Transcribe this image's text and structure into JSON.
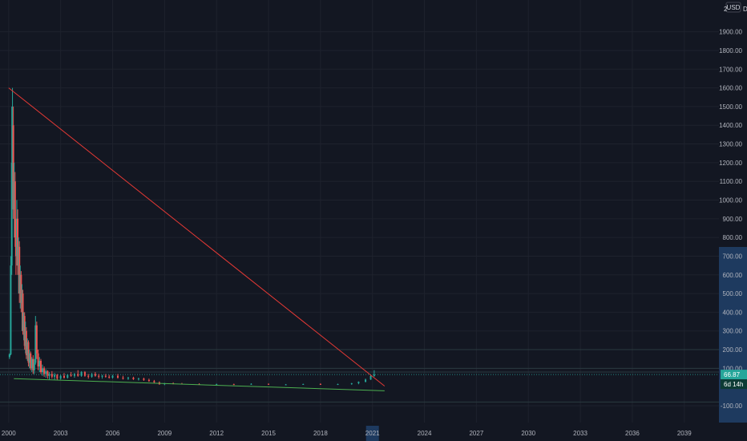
{
  "chart_data": {
    "type": "candlestick",
    "x_axis": {
      "tick_labels": [
        "2000",
        "2003",
        "2006",
        "2009",
        "2012",
        "2015",
        "2018",
        "2021",
        "2024",
        "2027",
        "2030",
        "2033",
        "2036",
        "2039"
      ],
      "highlighted": "2021",
      "range": [
        1999.5,
        2041
      ]
    },
    "y_axis": {
      "tick_labels": [
        "-100.00",
        "100.00",
        "200.00",
        "300.00",
        "400.00",
        "500.00",
        "600.00",
        "700.00",
        "800.00",
        "900.00",
        "1000.00",
        "1100.00",
        "1200.00",
        "1300.00",
        "1400.00",
        "1500.00",
        "1600.00",
        "1700.00",
        "1800.00",
        "1900.00"
      ],
      "range": [
        -190,
        2070
      ],
      "currency": "USD",
      "top_clipped_label": "2",
      "scale_mode": "D"
    },
    "series": [
      {
        "type": "candles",
        "points": [
          [
            2000.05,
            160,
            180,
            150,
            175
          ],
          [
            2000.12,
            175,
            700,
            170,
            650
          ],
          [
            2000.18,
            650,
            1500,
            600,
            1200
          ],
          [
            2000.22,
            1200,
            1600,
            1000,
            1400
          ],
          [
            2000.27,
            1400,
            1500,
            900,
            950
          ],
          [
            2000.32,
            950,
            1200,
            800,
            1100
          ],
          [
            2000.37,
            1100,
            1150,
            750,
            800
          ],
          [
            2000.42,
            800,
            900,
            600,
            700
          ],
          [
            2000.47,
            700,
            1000,
            650,
            900
          ],
          [
            2000.52,
            900,
            950,
            600,
            650
          ],
          [
            2000.57,
            650,
            800,
            500,
            750
          ],
          [
            2000.62,
            750,
            780,
            450,
            500
          ],
          [
            2000.67,
            500,
            650,
            420,
            600
          ],
          [
            2000.72,
            600,
            620,
            400,
            450
          ],
          [
            2000.77,
            450,
            550,
            300,
            500
          ],
          [
            2000.82,
            500,
            520,
            280,
            300
          ],
          [
            2000.87,
            300,
            400,
            250,
            380
          ],
          [
            2000.92,
            380,
            400,
            200,
            220
          ],
          [
            2000.97,
            220,
            350,
            180,
            300
          ],
          [
            2001.02,
            300,
            320,
            150,
            170
          ],
          [
            2001.08,
            170,
            260,
            140,
            240
          ],
          [
            2001.14,
            240,
            250,
            110,
            130
          ],
          [
            2001.2,
            130,
            200,
            100,
            180
          ],
          [
            2001.27,
            180,
            190,
            90,
            100
          ],
          [
            2001.34,
            100,
            160,
            80,
            150
          ],
          [
            2001.41,
            150,
            170,
            70,
            90
          ],
          [
            2001.48,
            90,
            150,
            70,
            130
          ],
          [
            2001.55,
            130,
            380,
            120,
            330
          ],
          [
            2001.62,
            330,
            350,
            150,
            180
          ],
          [
            2001.7,
            180,
            200,
            90,
            110
          ],
          [
            2001.78,
            110,
            160,
            80,
            140
          ],
          [
            2001.86,
            140,
            150,
            70,
            80
          ],
          [
            2001.95,
            80,
            120,
            60,
            100
          ],
          [
            2002.05,
            100,
            110,
            55,
            70
          ],
          [
            2002.15,
            70,
            95,
            50,
            85
          ],
          [
            2002.25,
            85,
            90,
            45,
            60
          ],
          [
            2002.35,
            60,
            80,
            40,
            70
          ],
          [
            2002.5,
            70,
            85,
            45,
            55
          ],
          [
            2002.65,
            55,
            75,
            40,
            65
          ],
          [
            2002.8,
            65,
            70,
            35,
            45
          ],
          [
            2003.0,
            45,
            65,
            40,
            60
          ],
          [
            2003.2,
            60,
            75,
            45,
            50
          ],
          [
            2003.4,
            50,
            70,
            45,
            65
          ],
          [
            2003.6,
            65,
            80,
            55,
            60
          ],
          [
            2003.8,
            60,
            75,
            50,
            70
          ],
          [
            2004.0,
            70,
            90,
            55,
            60
          ],
          [
            2004.2,
            60,
            85,
            55,
            80
          ],
          [
            2004.4,
            80,
            85,
            55,
            60
          ],
          [
            2004.6,
            60,
            70,
            45,
            55
          ],
          [
            2004.8,
            55,
            75,
            50,
            70
          ],
          [
            2005.0,
            70,
            80,
            55,
            60
          ],
          [
            2005.2,
            60,
            70,
            45,
            55
          ],
          [
            2005.4,
            55,
            65,
            45,
            60
          ],
          [
            2005.6,
            60,
            70,
            50,
            55
          ],
          [
            2005.8,
            55,
            65,
            45,
            50
          ],
          [
            2006.0,
            50,
            65,
            45,
            60
          ],
          [
            2006.3,
            60,
            70,
            45,
            50
          ],
          [
            2006.6,
            50,
            60,
            40,
            45
          ],
          [
            2006.9,
            45,
            55,
            38,
            50
          ],
          [
            2007.2,
            50,
            55,
            38,
            42
          ],
          [
            2007.5,
            42,
            50,
            35,
            45
          ],
          [
            2007.8,
            45,
            50,
            33,
            38
          ],
          [
            2008.1,
            38,
            45,
            28,
            32
          ],
          [
            2008.4,
            32,
            38,
            22,
            25
          ],
          [
            2008.7,
            25,
            30,
            12,
            15
          ],
          [
            2009.0,
            15,
            22,
            10,
            20
          ],
          [
            2009.5,
            20,
            25,
            15,
            18
          ],
          [
            2010.0,
            18,
            22,
            14,
            16
          ],
          [
            2011.0,
            16,
            20,
            12,
            14
          ],
          [
            2012.0,
            14,
            18,
            11,
            15
          ],
          [
            2013.0,
            15,
            18,
            12,
            14
          ],
          [
            2014.0,
            14,
            20,
            12,
            17
          ],
          [
            2015.0,
            17,
            19,
            12,
            13
          ],
          [
            2016.0,
            13,
            16,
            10,
            14
          ],
          [
            2017.0,
            14,
            18,
            12,
            16
          ],
          [
            2018.0,
            16,
            20,
            12,
            14
          ],
          [
            2019.0,
            14,
            18,
            11,
            16
          ],
          [
            2019.8,
            16,
            22,
            12,
            20
          ],
          [
            2020.2,
            20,
            30,
            15,
            28
          ],
          [
            2020.6,
            28,
            45,
            25,
            40
          ],
          [
            2020.9,
            40,
            65,
            38,
            60
          ],
          [
            2021.1,
            60,
            90,
            55,
            66.87
          ]
        ]
      },
      {
        "type": "trendline",
        "color": "#e53935",
        "points": [
          [
            2000.0,
            1600
          ],
          [
            2021.7,
            5
          ]
        ]
      },
      {
        "type": "trendline",
        "color": "#4caf50",
        "points": [
          [
            2000.3,
            45
          ],
          [
            2021.7,
            -20
          ]
        ]
      }
    ],
    "horizontal_lines": [
      -80,
      200,
      100,
      80
    ],
    "last_price": {
      "value": 66.87,
      "label": "66.87",
      "countdown": "6d 14h",
      "color": "#26a69a"
    },
    "colors": {
      "up": "#26a69a",
      "down": "#ef5350"
    }
  }
}
